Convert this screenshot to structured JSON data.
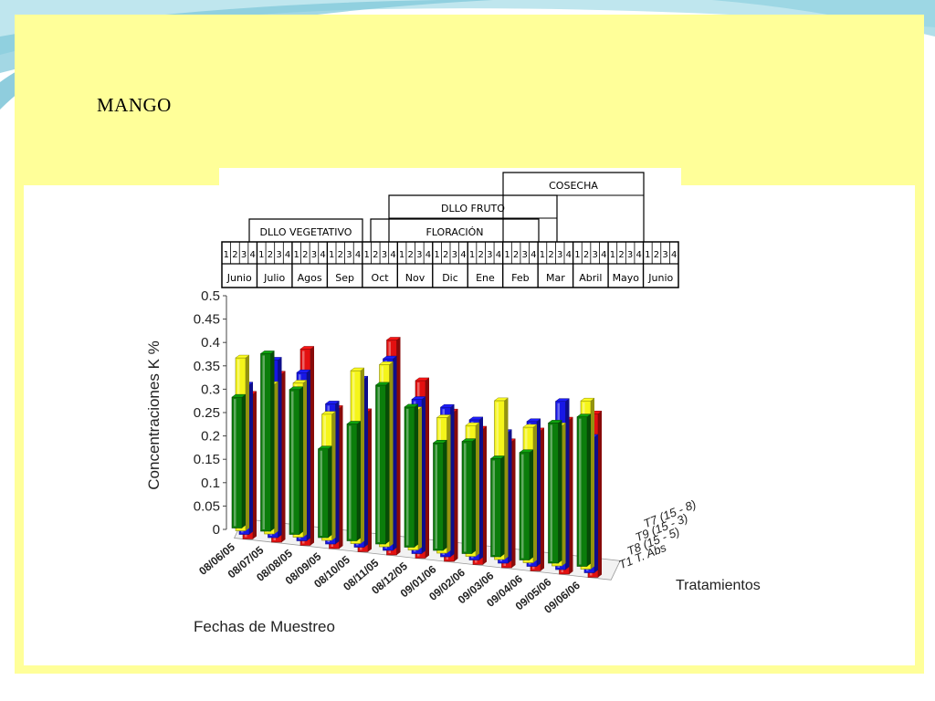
{
  "slide": {
    "title": "MANGO"
  },
  "colors": {
    "background_accent": "#9fd3e0",
    "slide_fill": "#ffff99",
    "red": "#e31010",
    "blue": "#1717e6",
    "yellow": "#f5f51a",
    "green": "#0b7d0b"
  },
  "phenology": {
    "phases": [
      {
        "label": "DLLO VEGETATIVO"
      },
      {
        "label": "FLORACIÓN"
      },
      {
        "label": "DLLO  FRUTO"
      },
      {
        "label": "COSECHA"
      }
    ],
    "weeks": [
      "1",
      "2",
      "3",
      "4"
    ],
    "months": [
      "Junio",
      "Julio",
      "Agos",
      "Sep",
      "Oct",
      "Nov",
      "Dic",
      "Ene",
      "Feb",
      "Mar",
      "Abril",
      "Mayo",
      "Junio"
    ]
  },
  "chart_data": {
    "type": "bar3d",
    "ylabel": "Concentraciones K %",
    "xlabel": "Fechas de Muestreo",
    "zlabel": "Tratamientos",
    "ylim": [
      0,
      0.5
    ],
    "yticks": [
      "0",
      "0.05",
      "0.1",
      "0.15",
      "0.2",
      "0.25",
      "0.3",
      "0.35",
      "0.4",
      "0.45",
      "0.5"
    ],
    "dates": [
      "08/06/05",
      "08/07/05",
      "08/08/05",
      "08/09/05",
      "08/10/05",
      "08/11/05",
      "08/12/05",
      "09/01/06",
      "09/02/06",
      "09/03/06",
      "09/04/06",
      "09/05/06",
      "09/06/06"
    ],
    "series": [
      {
        "name": "T1 T. Abs",
        "color": "#e31010",
        "values": [
          0.31,
          0.36,
          0.42,
          0.3,
          0.3,
          0.46,
          0.38,
          0.32,
          0.29,
          0.27,
          0.3,
          0.33,
          0.35
        ]
      },
      {
        "name": "T8 (15 - 5)",
        "color": "#1717e6",
        "values": [
          0.32,
          0.38,
          0.36,
          0.3,
          0.36,
          0.41,
          0.33,
          0.32,
          0.3,
          0.28,
          0.31,
          0.36,
          0.29
        ]
      },
      {
        "name": "T9 (15 - 3)",
        "color": "#f5f51a",
        "values": [
          0.37,
          0.32,
          0.33,
          0.27,
          0.37,
          0.39,
          0.3,
          0.29,
          0.28,
          0.34,
          0.29,
          0.3,
          0.36
        ]
      },
      {
        "name": "T7 (15 - 8)",
        "color": "#0b7d0b",
        "values": [
          0.28,
          0.38,
          0.31,
          0.19,
          0.25,
          0.34,
          0.3,
          0.23,
          0.24,
          0.21,
          0.23,
          0.3,
          0.32
        ]
      }
    ]
  }
}
